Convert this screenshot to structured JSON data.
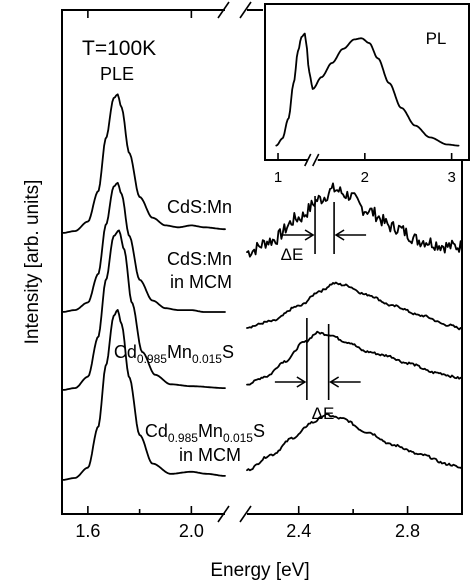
{
  "chart_data": {
    "type": "line",
    "title": "",
    "xlabel": "Energy [eV]",
    "ylabel": "Intensity [arb. units]",
    "y_scale": "linear, offset traces, no numeric labels",
    "x_break": [
      2.13,
      2.21
    ],
    "xlim_left": [
      1.5,
      2.13
    ],
    "xlim_right": [
      2.21,
      3.0
    ],
    "x_ticks": [
      1.6,
      2.0,
      2.4,
      2.8
    ],
    "x_tick_labels": [
      "1.6",
      "2.0",
      "2.4",
      "2.8"
    ],
    "grid": false,
    "annotations": {
      "temperature": "T=100K",
      "ple_label": "PLE",
      "delta_e_1": "ΔE",
      "delta_e_2": "ΔE"
    },
    "series_labels": [
      {
        "id": "s1",
        "line1": "CdS:Mn",
        "line2": ""
      },
      {
        "id": "s2",
        "line1": "CdS:Mn",
        "line2": "in MCM"
      },
      {
        "id": "s3",
        "line1": "Cd",
        "sub1": "0.985",
        "mid": "Mn",
        "sub2": "0.015",
        "end": "S",
        "line2": ""
      },
      {
        "id": "s4",
        "line1": "Cd",
        "sub1": "0.985",
        "mid": "Mn",
        "sub2": "0.015",
        "end": "S",
        "line2": "in MCM"
      }
    ],
    "series": [
      {
        "id": "s1",
        "ple_base": 0.0,
        "ple_peak_x": 1.715,
        "ple_peak_y": 0.73,
        "ple_points": [
          [
            1.5,
            0.0
          ],
          [
            1.55,
            0.01
          ],
          [
            1.6,
            0.06
          ],
          [
            1.64,
            0.22
          ],
          [
            1.67,
            0.5
          ],
          [
            1.7,
            0.71
          ],
          [
            1.715,
            0.73
          ],
          [
            1.73,
            0.66
          ],
          [
            1.76,
            0.42
          ],
          [
            1.8,
            0.19
          ],
          [
            1.85,
            0.08
          ],
          [
            1.9,
            0.04
          ],
          [
            1.95,
            0.03
          ],
          [
            2.0,
            0.04
          ],
          [
            2.05,
            0.03
          ],
          [
            2.13,
            0.02
          ]
        ],
        "ple_noise": 0.0,
        "pl_points": [
          [
            2.21,
            0.0
          ],
          [
            2.3,
            0.06
          ],
          [
            2.4,
            0.18
          ],
          [
            2.48,
            0.28
          ],
          [
            2.53,
            0.33
          ],
          [
            2.58,
            0.3
          ],
          [
            2.65,
            0.22
          ],
          [
            2.75,
            0.13
          ],
          [
            2.85,
            0.06
          ],
          [
            2.95,
            0.03
          ],
          [
            3.0,
            0.03
          ]
        ],
        "pl_noise": 0.035,
        "delta_e": [
          2.46,
          2.53
        ]
      },
      {
        "id": "s2",
        "ple_base": 0.0,
        "ple_peak_x": 1.715,
        "ple_peak_y": 0.68,
        "ple_points": [
          [
            1.5,
            0.0
          ],
          [
            1.55,
            0.01
          ],
          [
            1.6,
            0.05
          ],
          [
            1.64,
            0.2
          ],
          [
            1.67,
            0.46
          ],
          [
            1.7,
            0.66
          ],
          [
            1.715,
            0.68
          ],
          [
            1.73,
            0.62
          ],
          [
            1.76,
            0.4
          ],
          [
            1.8,
            0.17
          ],
          [
            1.85,
            0.06
          ],
          [
            1.9,
            0.02
          ],
          [
            1.95,
            0.01
          ],
          [
            2.0,
            0.01
          ],
          [
            2.05,
            0.0
          ],
          [
            2.13,
            0.0
          ]
        ],
        "ple_noise": 0.0,
        "pl_points": [
          [
            2.21,
            0.0
          ],
          [
            2.3,
            0.03
          ],
          [
            2.4,
            0.11
          ],
          [
            2.48,
            0.19
          ],
          [
            2.53,
            0.23
          ],
          [
            2.57,
            0.22
          ],
          [
            2.65,
            0.17
          ],
          [
            2.75,
            0.11
          ],
          [
            2.85,
            0.06
          ],
          [
            2.95,
            0.01
          ],
          [
            3.0,
            -0.01
          ]
        ],
        "pl_noise": 0.006,
        "delta_e": []
      },
      {
        "id": "s3",
        "ple_base": 0.0,
        "ple_peak_x": 1.72,
        "ple_peak_y": 0.84,
        "ple_points": [
          [
            1.5,
            0.0
          ],
          [
            1.55,
            0.01
          ],
          [
            1.6,
            0.07
          ],
          [
            1.64,
            0.28
          ],
          [
            1.67,
            0.58
          ],
          [
            1.7,
            0.81
          ],
          [
            1.72,
            0.84
          ],
          [
            1.74,
            0.74
          ],
          [
            1.77,
            0.46
          ],
          [
            1.81,
            0.2
          ],
          [
            1.86,
            0.08
          ],
          [
            1.92,
            0.03
          ],
          [
            2.0,
            0.02
          ],
          [
            2.13,
            0.01
          ]
        ],
        "ple_noise": 0.0,
        "pl_points": [
          [
            2.21,
            0.0
          ],
          [
            2.28,
            0.04
          ],
          [
            2.35,
            0.12
          ],
          [
            2.42,
            0.22
          ],
          [
            2.47,
            0.27
          ],
          [
            2.51,
            0.26
          ],
          [
            2.58,
            0.22
          ],
          [
            2.65,
            0.17
          ],
          [
            2.72,
            0.15
          ],
          [
            2.8,
            0.11
          ],
          [
            2.9,
            0.06
          ],
          [
            3.0,
            0.03
          ]
        ],
        "pl_noise": 0.006,
        "delta_e": [
          2.43,
          2.51
        ]
      },
      {
        "id": "s4",
        "ple_base": 0.0,
        "ple_peak_x": 1.715,
        "ple_peak_y": 0.83,
        "ple_points": [
          [
            1.5,
            0.0
          ],
          [
            1.55,
            0.01
          ],
          [
            1.6,
            0.06
          ],
          [
            1.64,
            0.26
          ],
          [
            1.67,
            0.56
          ],
          [
            1.7,
            0.8
          ],
          [
            1.715,
            0.83
          ],
          [
            1.73,
            0.76
          ],
          [
            1.76,
            0.5
          ],
          [
            1.8,
            0.22
          ],
          [
            1.85,
            0.08
          ],
          [
            1.92,
            0.03
          ],
          [
            2.0,
            0.04
          ],
          [
            2.06,
            0.03
          ],
          [
            2.13,
            0.02
          ]
        ],
        "ple_noise": 0.0,
        "pl_points": [
          [
            2.21,
            0.0
          ],
          [
            2.3,
            0.08
          ],
          [
            2.38,
            0.17
          ],
          [
            2.45,
            0.25
          ],
          [
            2.5,
            0.29
          ],
          [
            2.56,
            0.27
          ],
          [
            2.65,
            0.2
          ],
          [
            2.75,
            0.13
          ],
          [
            2.85,
            0.08
          ],
          [
            2.95,
            0.03
          ],
          [
            3.0,
            0.01
          ]
        ],
        "pl_noise": 0.006,
        "delta_e": []
      }
    ],
    "inset": {
      "label": "PL",
      "xlim": [
        0.85,
        3.2
      ],
      "x_ticks": [
        1,
        2,
        3
      ],
      "x_tick_labels": [
        "1",
        "2",
        "3"
      ],
      "x_break": [
        1.35,
        1.45
      ],
      "points": [
        [
          0.98,
          0.02
        ],
        [
          1.05,
          0.08
        ],
        [
          1.12,
          0.25
        ],
        [
          1.18,
          0.55
        ],
        [
          1.23,
          0.82
        ],
        [
          1.27,
          0.94
        ],
        [
          1.31,
          0.97
        ],
        [
          1.33,
          0.86
        ],
        [
          1.35,
          0.7
        ],
        [
          1.37,
          0.6
        ],
        [
          1.4,
          0.5
        ],
        [
          1.5,
          0.6
        ],
        [
          1.62,
          0.72
        ],
        [
          1.75,
          0.84
        ],
        [
          1.88,
          0.92
        ],
        [
          1.96,
          0.93
        ],
        [
          2.05,
          0.89
        ],
        [
          2.15,
          0.76
        ],
        [
          2.28,
          0.55
        ],
        [
          2.42,
          0.34
        ],
        [
          2.58,
          0.19
        ],
        [
          2.75,
          0.09
        ],
        [
          2.95,
          0.03
        ],
        [
          3.08,
          0.02
        ]
      ]
    }
  }
}
